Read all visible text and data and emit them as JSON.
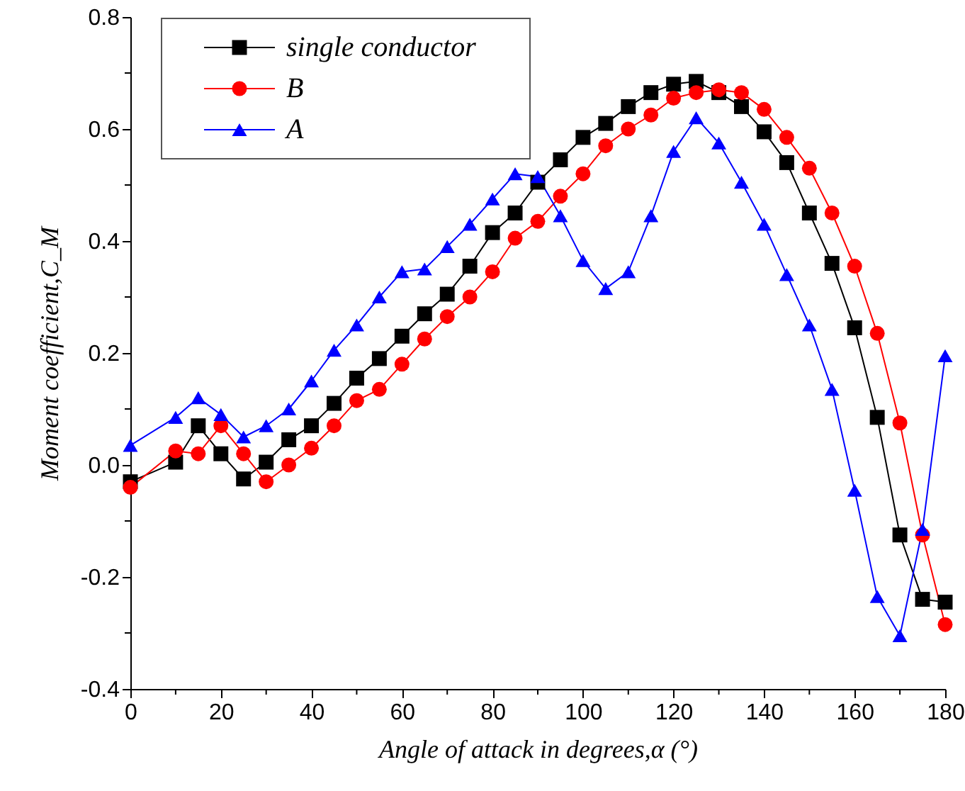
{
  "chart_data": {
    "type": "line",
    "xlabel": "Angle of attack in degrees,α (°)",
    "ylabel": "Moment coefficient,C_M",
    "x": [
      0,
      10,
      15,
      20,
      25,
      30,
      35,
      40,
      45,
      50,
      55,
      60,
      65,
      70,
      75,
      80,
      85,
      90,
      95,
      100,
      105,
      110,
      115,
      120,
      125,
      130,
      135,
      140,
      145,
      150,
      155,
      160,
      165,
      170,
      175,
      180
    ],
    "series": [
      {
        "name": "single conductor",
        "color": "#000000",
        "marker": "square",
        "values": [
          -0.03,
          0.005,
          0.07,
          0.02,
          -0.025,
          0.005,
          0.045,
          0.07,
          0.11,
          0.155,
          0.19,
          0.23,
          0.27,
          0.305,
          0.355,
          0.415,
          0.45,
          0.505,
          0.545,
          0.585,
          0.61,
          0.64,
          0.665,
          0.68,
          0.685,
          0.665,
          0.64,
          0.595,
          0.54,
          0.45,
          0.36,
          0.245,
          0.085,
          -0.125,
          -0.24,
          -0.245
        ]
      },
      {
        "name": "B",
        "color": "#ff0000",
        "marker": "circle",
        "values": [
          -0.04,
          0.025,
          0.02,
          0.07,
          0.02,
          -0.03,
          0.0,
          0.03,
          0.07,
          0.115,
          0.135,
          0.18,
          0.225,
          0.265,
          0.3,
          0.345,
          0.405,
          0.435,
          0.48,
          0.52,
          0.57,
          0.6,
          0.625,
          0.655,
          0.665,
          0.67,
          0.665,
          0.635,
          0.585,
          0.53,
          0.45,
          0.355,
          0.235,
          0.075,
          -0.125,
          -0.285
        ]
      },
      {
        "name": "A",
        "color": "#0000ff",
        "marker": "triangle",
        "values": [
          0.035,
          0.085,
          0.12,
          0.09,
          0.05,
          0.07,
          0.1,
          0.15,
          0.205,
          0.25,
          0.3,
          0.345,
          0.35,
          0.39,
          0.43,
          0.475,
          0.52,
          0.515,
          0.445,
          0.365,
          0.315,
          0.345,
          0.445,
          0.56,
          0.62,
          0.575,
          0.505,
          0.43,
          0.34,
          0.25,
          0.135,
          -0.045,
          -0.235,
          -0.305,
          -0.115,
          0.195
        ]
      }
    ],
    "xlim": [
      0,
      180
    ],
    "xticks": [
      0,
      {
        "value": 10,
        "label": null
      },
      20,
      {
        "value": 30,
        "label": null
      },
      40,
      {
        "value": 50,
        "label": null
      },
      60,
      {
        "value": 70,
        "label": null
      },
      80,
      {
        "value": 90,
        "label": null
      },
      100,
      {
        "value": 110,
        "label": null
      },
      120,
      {
        "value": 130,
        "label": null
      },
      140,
      {
        "value": 150,
        "label": null
      },
      160,
      {
        "value": 170,
        "label": null
      },
      180
    ],
    "ylim": [
      -0.4,
      0.8
    ],
    "yticks": [
      {
        "value": -0.4,
        "label": "-0.4"
      },
      {
        "value": -0.3,
        "label": null
      },
      {
        "value": -0.2,
        "label": "-0.2"
      },
      {
        "value": -0.1,
        "label": null
      },
      {
        "value": 0,
        "label": "0.0"
      },
      {
        "value": 0.1,
        "label": null
      },
      {
        "value": 0.2,
        "label": "0.2"
      },
      {
        "value": 0.3,
        "label": null
      },
      {
        "value": 0.4,
        "label": "0.4"
      },
      {
        "value": 0.5,
        "label": null
      },
      {
        "value": 0.6,
        "label": "0.6"
      },
      {
        "value": 0.7,
        "label": null
      },
      {
        "value": 0.8,
        "label": "0.8"
      }
    ],
    "legend": "top left",
    "grid": false,
    "line_style": "solid"
  }
}
